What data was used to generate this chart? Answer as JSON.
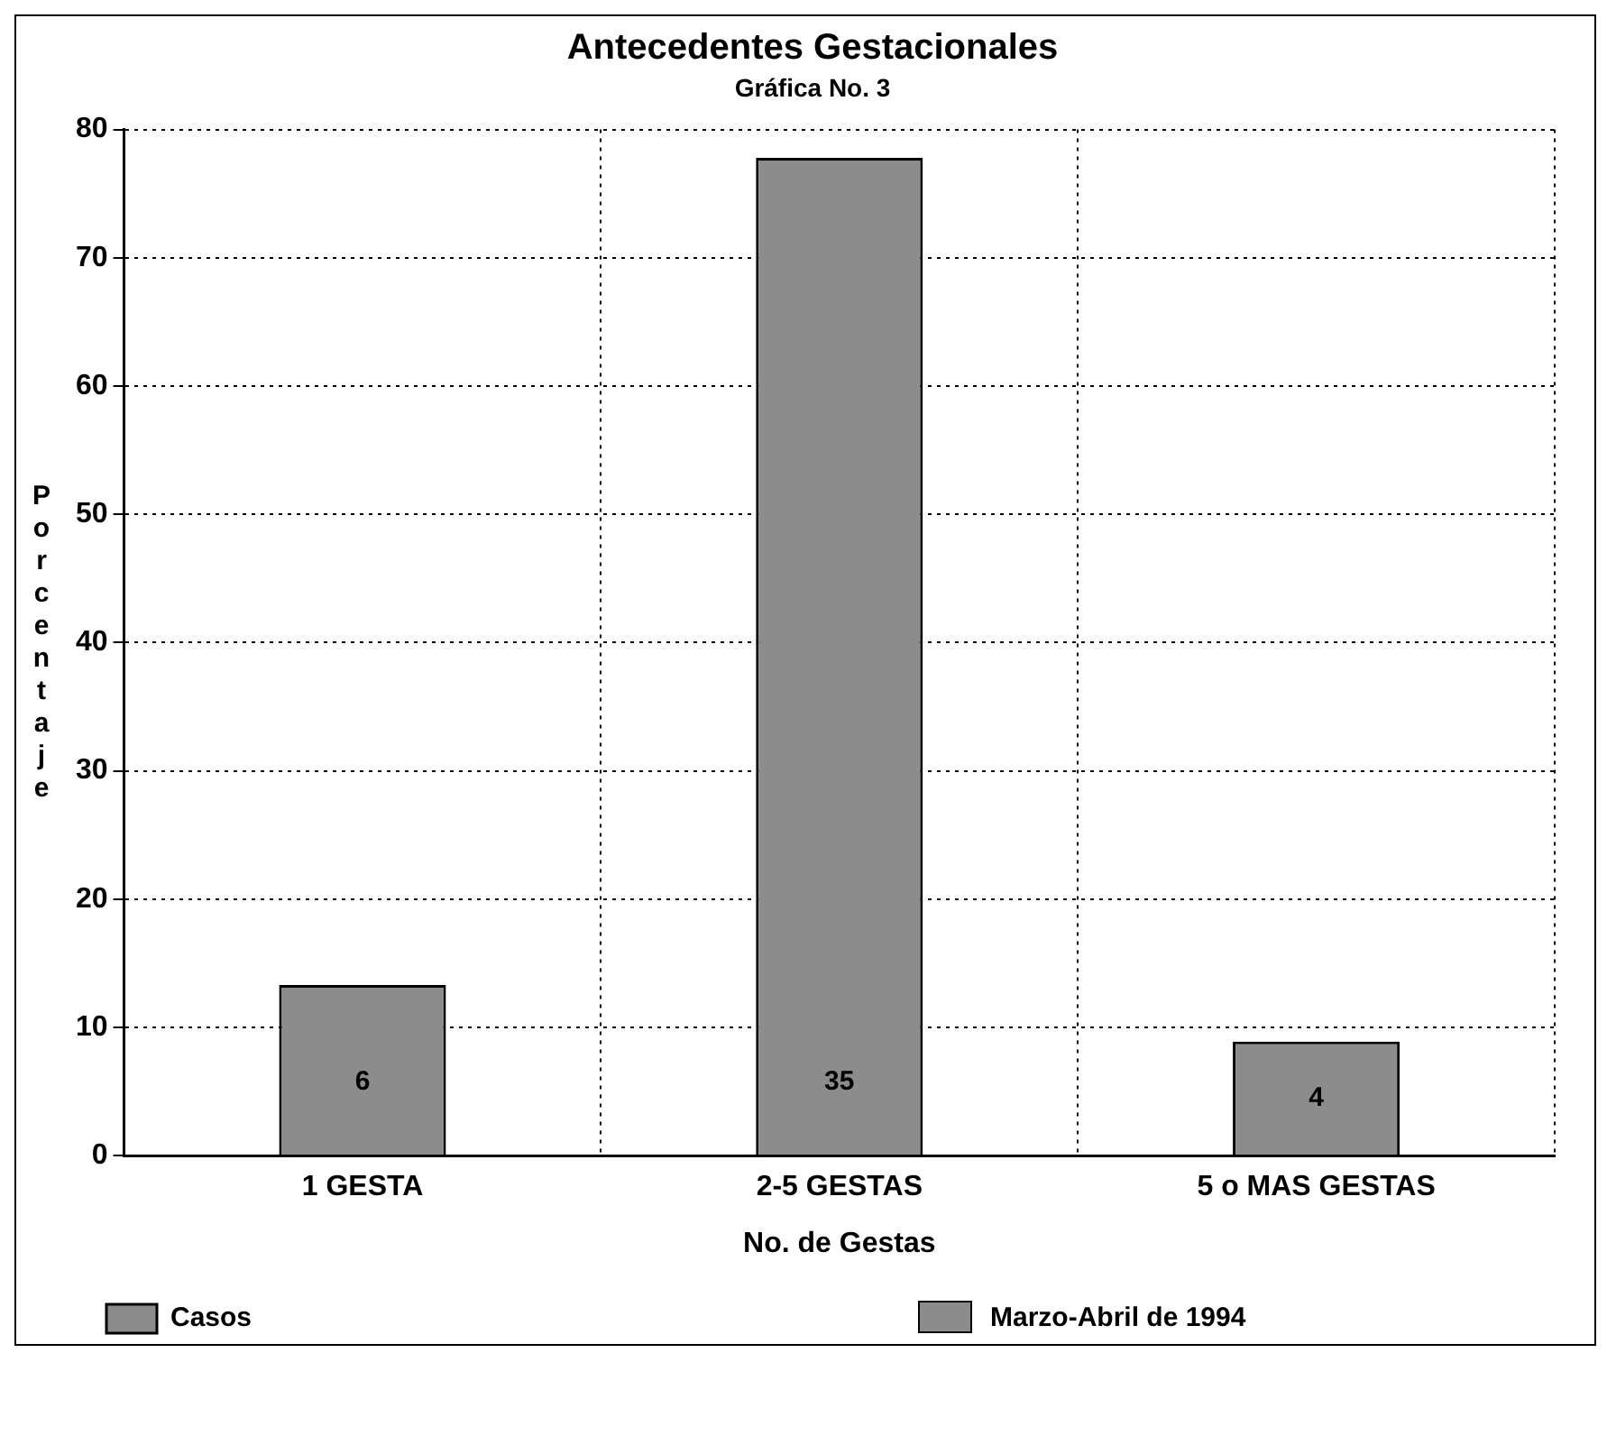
{
  "chart_data": {
    "type": "bar",
    "title": "Antecedentes Gestacionales",
    "subtitle": "Gráfica No. 3",
    "xlabel": "No. de Gestas",
    "ylabel": "Porcentaje",
    "categories": [
      "1 GESTA",
      "2-5 GESTAS",
      "5 o MAS GESTAS"
    ],
    "series": [
      {
        "name": "Casos",
        "color": "#8c8c8c",
        "values": [
          13.3,
          77.8,
          8.9
        ]
      }
    ],
    "annotations": [
      "Marzo-Abril de 1994",
      "6",
      "35",
      "4"
    ],
    "ylim": [
      0,
      80
    ],
    "yticks": [
      0,
      10,
      20,
      30,
      40,
      50,
      60,
      70,
      80
    ],
    "grid": true,
    "legend": "bottom"
  }
}
